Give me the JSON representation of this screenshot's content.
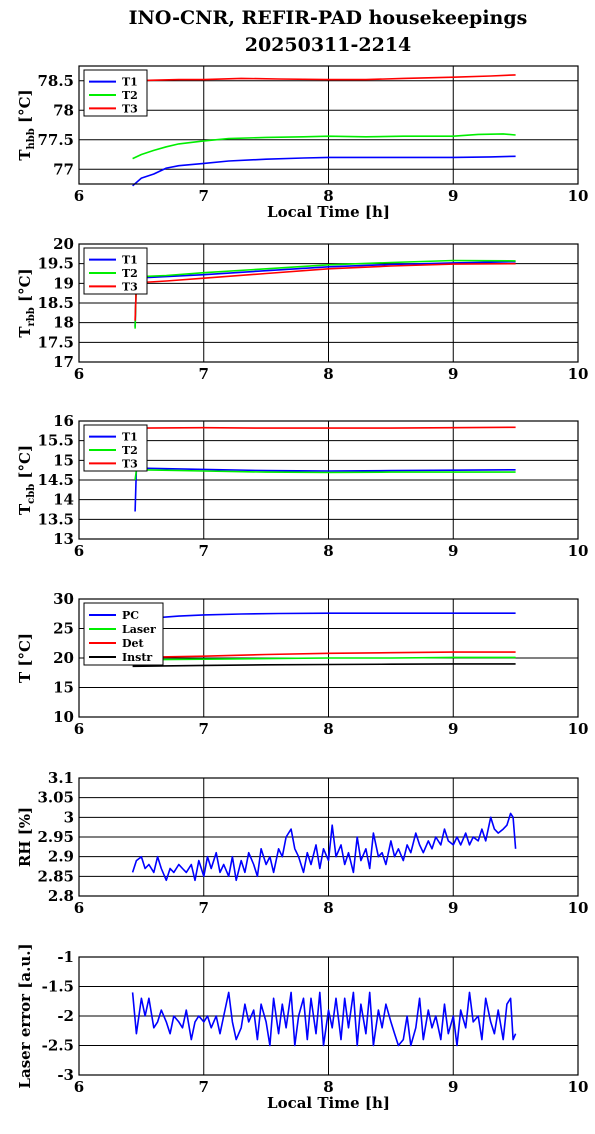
{
  "title_lines": [
    "INO-CNR, REFIR-PAD housekeepings",
    "20250311-2214"
  ],
  "chart_data": [
    {
      "type": "line",
      "ylabel_main": "T",
      "ylabel_sub": "hbb",
      "ylabel_tail": " [°C]",
      "xlabel": "Local Time [h]",
      "xlim": [
        6,
        10
      ],
      "ylim": [
        76.75,
        78.75
      ],
      "xticks": [
        "6",
        "7",
        "8",
        "9",
        "10"
      ],
      "yticks": [
        {
          "value": 77,
          "label": "77"
        },
        {
          "value": 77.5,
          "label": "77.5"
        },
        {
          "value": 78,
          "label": "78"
        },
        {
          "value": 78.5,
          "label": "78.5"
        }
      ],
      "grid": true,
      "legend_position": "top-left",
      "series": [
        {
          "name": "T1",
          "color": "#0000ff",
          "x": [
            6.43,
            6.5,
            6.6,
            6.7,
            6.8,
            7.0,
            7.2,
            7.5,
            7.8,
            8.0,
            8.3,
            8.6,
            9.0,
            9.3,
            9.5
          ],
          "y": [
            76.72,
            76.85,
            76.92,
            77.02,
            77.06,
            77.1,
            77.14,
            77.17,
            77.19,
            77.2,
            77.2,
            77.2,
            77.2,
            77.21,
            77.22
          ]
        },
        {
          "name": "T2",
          "color": "#00ee00",
          "x": [
            6.43,
            6.5,
            6.6,
            6.7,
            6.8,
            7.0,
            7.2,
            7.5,
            7.8,
            8.0,
            8.3,
            8.6,
            9.0,
            9.2,
            9.4,
            9.5
          ],
          "y": [
            77.18,
            77.25,
            77.32,
            77.38,
            77.43,
            77.48,
            77.52,
            77.54,
            77.55,
            77.56,
            77.55,
            77.56,
            77.56,
            77.59,
            77.6,
            77.58
          ]
        },
        {
          "name": "T3",
          "color": "#ff0000",
          "x": [
            6.43,
            6.6,
            6.8,
            7.0,
            7.3,
            7.6,
            8.0,
            8.3,
            8.6,
            9.0,
            9.3,
            9.5
          ],
          "y": [
            78.5,
            78.51,
            78.52,
            78.52,
            78.54,
            78.53,
            78.52,
            78.52,
            78.54,
            78.56,
            78.58,
            78.6
          ]
        }
      ]
    },
    {
      "type": "line",
      "ylabel_main": "T",
      "ylabel_sub": "rbb",
      "ylabel_tail": " [°C]",
      "xlabel": "",
      "xlim": [
        6,
        10
      ],
      "ylim": [
        17,
        20
      ],
      "xticks": [
        "6",
        "7",
        "8",
        "9",
        "10"
      ],
      "yticks": [
        {
          "value": 17,
          "label": "17"
        },
        {
          "value": 17.5,
          "label": "17.5"
        },
        {
          "value": 18,
          "label": "18"
        },
        {
          "value": 18.5,
          "label": "18.5"
        },
        {
          "value": 19,
          "label": "19"
        },
        {
          "value": 19.5,
          "label": "19.5"
        },
        {
          "value": 20,
          "label": "20"
        }
      ],
      "grid": true,
      "legend_position": "top-left",
      "series": [
        {
          "name": "T1",
          "color": "#0000ff",
          "x": [
            6.45,
            6.46,
            6.5,
            6.7,
            7.0,
            7.5,
            8.0,
            8.5,
            9.0,
            9.5
          ],
          "y": [
            17.9,
            19.12,
            19.14,
            19.17,
            19.22,
            19.32,
            19.42,
            19.48,
            19.52,
            19.55
          ]
        },
        {
          "name": "T2",
          "color": "#00ee00",
          "x": [
            6.45,
            6.46,
            6.5,
            6.7,
            7.0,
            7.5,
            8.0,
            8.5,
            9.0,
            9.5
          ],
          "y": [
            17.85,
            19.15,
            19.17,
            19.2,
            19.27,
            19.37,
            19.47,
            19.53,
            19.58,
            19.57
          ]
        },
        {
          "name": "T3",
          "color": "#ff0000",
          "x": [
            6.45,
            6.46,
            6.5,
            6.7,
            7.0,
            7.5,
            8.0,
            8.5,
            9.0,
            9.5
          ],
          "y": [
            18.05,
            19.0,
            19.02,
            19.06,
            19.13,
            19.25,
            19.37,
            19.44,
            19.49,
            19.5
          ]
        }
      ]
    },
    {
      "type": "line",
      "ylabel_main": "T",
      "ylabel_sub": "cbb",
      "ylabel_tail": " [°C]",
      "xlabel": "",
      "xlim": [
        6,
        10
      ],
      "ylim": [
        13,
        16
      ],
      "xticks": [
        "6",
        "7",
        "8",
        "9",
        "10"
      ],
      "yticks": [
        {
          "value": 13,
          "label": "13"
        },
        {
          "value": 13.5,
          "label": "13.5"
        },
        {
          "value": 14,
          "label": "14"
        },
        {
          "value": 14.5,
          "label": "14.5"
        },
        {
          "value": 15,
          "label": "15"
        },
        {
          "value": 15.5,
          "label": "15.5"
        },
        {
          "value": 16,
          "label": "16"
        }
      ],
      "grid": true,
      "legend_position": "top-left",
      "series": [
        {
          "name": "T1",
          "color": "#0000ff",
          "x": [
            6.45,
            6.46,
            6.5,
            7.0,
            7.5,
            8.0,
            8.5,
            9.0,
            9.5
          ],
          "y": [
            13.7,
            14.8,
            14.8,
            14.77,
            14.74,
            14.73,
            14.74,
            14.75,
            14.76
          ]
        },
        {
          "name": "T2",
          "color": "#00ee00",
          "x": [
            6.45,
            6.46,
            6.5,
            7.0,
            7.5,
            8.0,
            8.5,
            9.0,
            9.5
          ],
          "y": [
            14.5,
            14.75,
            14.76,
            14.73,
            14.7,
            14.69,
            14.7,
            14.7,
            14.7
          ]
        },
        {
          "name": "T3",
          "color": "#ff0000",
          "x": [
            6.45,
            6.5,
            7.0,
            7.5,
            8.0,
            8.5,
            9.0,
            9.5
          ],
          "y": [
            15.82,
            15.82,
            15.83,
            15.82,
            15.82,
            15.82,
            15.83,
            15.84
          ]
        }
      ]
    },
    {
      "type": "line",
      "ylabel_main": "T [°C]",
      "ylabel_sub": "",
      "ylabel_tail": "",
      "xlabel": "",
      "xlim": [
        6,
        10
      ],
      "ylim": [
        10,
        30
      ],
      "xticks": [
        "6",
        "7",
        "8",
        "9",
        "10"
      ],
      "yticks": [
        {
          "value": 10,
          "label": "10"
        },
        {
          "value": 15,
          "label": "15"
        },
        {
          "value": 20,
          "label": "20"
        },
        {
          "value": 25,
          "label": "25"
        },
        {
          "value": 30,
          "label": "30"
        }
      ],
      "grid": true,
      "legend_position": "top-left",
      "series": [
        {
          "name": "PC",
          "color": "#0000ff",
          "x": [
            6.43,
            6.6,
            6.8,
            7.0,
            7.3,
            7.6,
            8.0,
            8.5,
            9.0,
            9.5
          ],
          "y": [
            26.4,
            26.8,
            27.1,
            27.3,
            27.45,
            27.55,
            27.6,
            27.6,
            27.6,
            27.6
          ]
        },
        {
          "name": "Laser",
          "color": "#00ee00",
          "x": [
            6.43,
            7.0,
            7.5,
            8.0,
            8.5,
            9.0,
            9.5
          ],
          "y": [
            19.7,
            19.8,
            19.9,
            20.0,
            20.0,
            20.1,
            20.1
          ]
        },
        {
          "name": "Det",
          "color": "#ff0000",
          "x": [
            6.43,
            7.0,
            7.5,
            8.0,
            8.5,
            9.0,
            9.5
          ],
          "y": [
            20.1,
            20.3,
            20.6,
            20.8,
            20.9,
            21.0,
            21.0
          ]
        },
        {
          "name": "Instr",
          "color": "#000000",
          "x": [
            6.43,
            7.0,
            7.5,
            8.0,
            8.5,
            9.0,
            9.5
          ],
          "y": [
            18.6,
            18.75,
            18.85,
            18.9,
            18.95,
            19.0,
            19.0
          ]
        }
      ]
    },
    {
      "type": "line",
      "ylabel_main": "RH [%]",
      "ylabel_sub": "",
      "ylabel_tail": "",
      "xlabel": "",
      "xlim": [
        6,
        10
      ],
      "ylim": [
        2.8,
        3.1
      ],
      "xticks": [
        "6",
        "7",
        "8",
        "9",
        "10"
      ],
      "yticks": [
        {
          "value": 2.8,
          "label": "2.8"
        },
        {
          "value": 2.85,
          "label": "2.85"
        },
        {
          "value": 2.9,
          "label": "2.9"
        },
        {
          "value": 2.95,
          "label": "2.95"
        },
        {
          "value": 3,
          "label": "3"
        },
        {
          "value": 3.05,
          "label": "3.05"
        },
        {
          "value": 3.1,
          "label": "3.1"
        }
      ],
      "grid": true,
      "legend_position": "none",
      "series": [
        {
          "name": "",
          "color": "#0000ff",
          "x": [
            6.43,
            6.46,
            6.5,
            6.53,
            6.56,
            6.6,
            6.63,
            6.66,
            6.7,
            6.73,
            6.76,
            6.8,
            6.83,
            6.86,
            6.9,
            6.93,
            6.96,
            7.0,
            7.03,
            7.06,
            7.1,
            7.13,
            7.16,
            7.2,
            7.23,
            7.26,
            7.3,
            7.33,
            7.36,
            7.4,
            7.43,
            7.46,
            7.5,
            7.53,
            7.56,
            7.6,
            7.63,
            7.66,
            7.7,
            7.73,
            7.76,
            7.8,
            7.83,
            7.86,
            7.9,
            7.93,
            7.96,
            8.0,
            8.03,
            8.06,
            8.1,
            8.13,
            8.16,
            8.2,
            8.23,
            8.26,
            8.3,
            8.33,
            8.36,
            8.4,
            8.43,
            8.46,
            8.5,
            8.53,
            8.56,
            8.6,
            8.63,
            8.66,
            8.7,
            8.73,
            8.76,
            8.8,
            8.83,
            8.86,
            8.9,
            8.93,
            8.96,
            9.0,
            9.03,
            9.06,
            9.1,
            9.13,
            9.16,
            9.2,
            9.23,
            9.26,
            9.3,
            9.33,
            9.36,
            9.4,
            9.43,
            9.46,
            9.48,
            9.5
          ],
          "y": [
            2.86,
            2.89,
            2.9,
            2.87,
            2.88,
            2.86,
            2.9,
            2.87,
            2.84,
            2.87,
            2.86,
            2.88,
            2.87,
            2.86,
            2.88,
            2.84,
            2.89,
            2.85,
            2.9,
            2.87,
            2.91,
            2.86,
            2.88,
            2.85,
            2.9,
            2.84,
            2.89,
            2.86,
            2.91,
            2.88,
            2.85,
            2.92,
            2.88,
            2.9,
            2.86,
            2.92,
            2.9,
            2.95,
            2.97,
            2.92,
            2.9,
            2.86,
            2.91,
            2.88,
            2.93,
            2.87,
            2.92,
            2.89,
            2.98,
            2.9,
            2.93,
            2.88,
            2.91,
            2.86,
            2.95,
            2.89,
            2.92,
            2.87,
            2.96,
            2.9,
            2.91,
            2.88,
            2.94,
            2.9,
            2.92,
            2.89,
            2.93,
            2.91,
            2.96,
            2.93,
            2.91,
            2.94,
            2.92,
            2.95,
            2.93,
            2.97,
            2.94,
            2.93,
            2.95,
            2.93,
            2.96,
            2.93,
            2.95,
            2.94,
            2.97,
            2.94,
            3.0,
            2.97,
            2.96,
            2.97,
            2.98,
            3.01,
            3.0,
            2.92
          ]
        }
      ]
    },
    {
      "type": "line",
      "ylabel_main": "Laser error [a.u.]",
      "ylabel_sub": "",
      "ylabel_tail": "",
      "xlabel": "Local Time [h]",
      "xlim": [
        6,
        10
      ],
      "ylim": [
        -3,
        -1
      ],
      "xticks": [
        "6",
        "7",
        "8",
        "9",
        "10"
      ],
      "yticks": [
        {
          "value": -3,
          "label": "-3"
        },
        {
          "value": -2.5,
          "label": "-2.5"
        },
        {
          "value": -2,
          "label": "-2"
        },
        {
          "value": -1.5,
          "label": "-1.5"
        },
        {
          "value": -1,
          "label": "-1"
        }
      ],
      "grid": true,
      "legend_position": "none",
      "series": [
        {
          "name": "",
          "color": "#0000ff",
          "x": [
            6.43,
            6.46,
            6.5,
            6.53,
            6.56,
            6.6,
            6.63,
            6.66,
            6.7,
            6.73,
            6.76,
            6.8,
            6.83,
            6.86,
            6.9,
            6.93,
            6.96,
            7.0,
            7.03,
            7.06,
            7.1,
            7.13,
            7.16,
            7.2,
            7.23,
            7.26,
            7.3,
            7.33,
            7.36,
            7.4,
            7.43,
            7.46,
            7.5,
            7.53,
            7.56,
            7.6,
            7.63,
            7.66,
            7.7,
            7.73,
            7.76,
            7.8,
            7.83,
            7.86,
            7.9,
            7.93,
            7.96,
            8.0,
            8.03,
            8.06,
            8.1,
            8.13,
            8.16,
            8.2,
            8.23,
            8.26,
            8.3,
            8.33,
            8.36,
            8.4,
            8.43,
            8.46,
            8.5,
            8.53,
            8.56,
            8.6,
            8.63,
            8.66,
            8.7,
            8.73,
            8.76,
            8.8,
            8.83,
            8.86,
            8.9,
            8.93,
            8.96,
            9.0,
            9.03,
            9.06,
            9.1,
            9.13,
            9.16,
            9.2,
            9.23,
            9.26,
            9.3,
            9.33,
            9.36,
            9.4,
            9.43,
            9.46,
            9.48,
            9.5
          ],
          "y": [
            -1.6,
            -2.3,
            -1.7,
            -2.0,
            -1.7,
            -2.2,
            -2.1,
            -1.9,
            -2.1,
            -2.3,
            -2.0,
            -2.1,
            -2.2,
            -1.9,
            -2.4,
            -2.1,
            -2.0,
            -2.1,
            -2.0,
            -2.2,
            -2.0,
            -2.3,
            -2.0,
            -1.6,
            -2.1,
            -2.4,
            -2.2,
            -1.8,
            -2.1,
            -1.9,
            -2.4,
            -1.8,
            -2.1,
            -2.5,
            -1.7,
            -2.3,
            -1.8,
            -2.2,
            -1.6,
            -2.5,
            -2.0,
            -1.7,
            -2.4,
            -1.7,
            -2.3,
            -1.6,
            -2.5,
            -1.9,
            -2.2,
            -1.7,
            -2.4,
            -1.7,
            -2.2,
            -1.6,
            -2.5,
            -1.8,
            -2.3,
            -1.6,
            -2.5,
            -1.9,
            -2.2,
            -1.8,
            -2.1,
            -2.3,
            -2.5,
            -2.4,
            -2.0,
            -2.5,
            -2.2,
            -1.7,
            -2.4,
            -1.9,
            -2.2,
            -2.0,
            -2.4,
            -1.8,
            -2.3,
            -2.0,
            -2.5,
            -1.9,
            -2.2,
            -1.6,
            -2.1,
            -2.0,
            -2.4,
            -1.7,
            -2.1,
            -2.3,
            -1.9,
            -2.4,
            -1.8,
            -1.7,
            -2.4,
            -2.3
          ]
        }
      ]
    }
  ]
}
